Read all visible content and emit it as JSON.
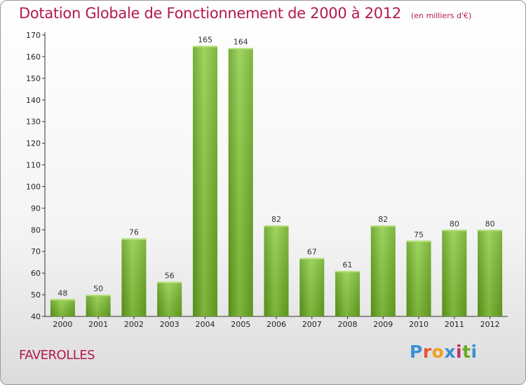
{
  "header": {
    "title": "Dotation Globale de Fonctionnement de 2000 à 2012",
    "unit": "(en milliers d'€)"
  },
  "commune": "FAVEROLLES",
  "logo": {
    "letters": [
      "P",
      "r",
      "o",
      "x",
      "i",
      "t",
      "i"
    ],
    "colors": [
      "#3a8fd6",
      "#e8542e",
      "#f0a020",
      "#3a8fd6",
      "#c0306a",
      "#6aaa1f",
      "#3a8fd6"
    ]
  },
  "chart_data": {
    "type": "bar",
    "title": "Dotation Globale de Fonctionnement de 2000 à 2012",
    "subtitle": "(en milliers d'€)",
    "categories": [
      "2000",
      "2001",
      "2002",
      "2003",
      "2004",
      "2005",
      "2006",
      "2007",
      "2008",
      "2009",
      "2010",
      "2011",
      "2012"
    ],
    "values": [
      48,
      50,
      76,
      56,
      165,
      164,
      82,
      67,
      61,
      82,
      75,
      80,
      80
    ],
    "ylim": [
      40,
      170
    ],
    "yticks": [
      40,
      50,
      60,
      70,
      80,
      90,
      100,
      110,
      120,
      130,
      140,
      150,
      160,
      170
    ],
    "grid": false,
    "bar_color": "#7cbc32"
  }
}
